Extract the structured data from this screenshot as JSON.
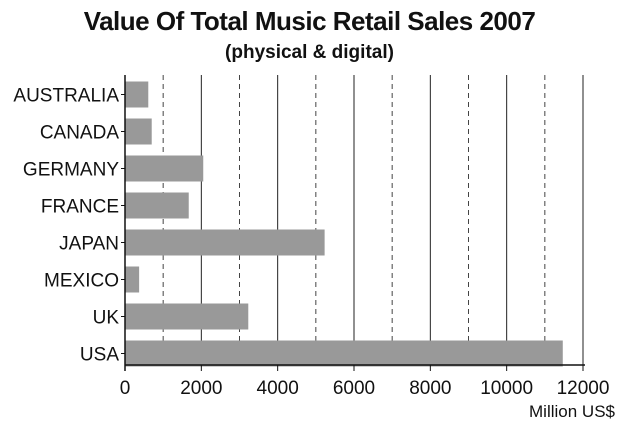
{
  "chart_data": {
    "type": "bar",
    "orientation": "horizontal",
    "title": "Value Of Total Music Retail Sales 2007",
    "subtitle": "(physical & digital)",
    "xlabel": "Million US$",
    "ylabel": "",
    "categories": [
      "AUSTRALIA",
      "CANADA",
      "GERMANY",
      "FRANCE",
      "JAPAN",
      "MEXICO",
      "UK",
      "USA"
    ],
    "values": [
      610,
      700,
      2050,
      1670,
      5230,
      370,
      3230,
      11470
    ],
    "xlim": [
      0,
      12000
    ],
    "xticks": [
      0,
      2000,
      4000,
      6000,
      8000,
      10000,
      12000
    ],
    "xtick_labels": [
      "0",
      "2000",
      "4000",
      "6000",
      "8000",
      "10000",
      "12000"
    ],
    "grid": "vertical solid lines at major ticks, dashed lines at midpoints",
    "bar_color": "#999999"
  }
}
